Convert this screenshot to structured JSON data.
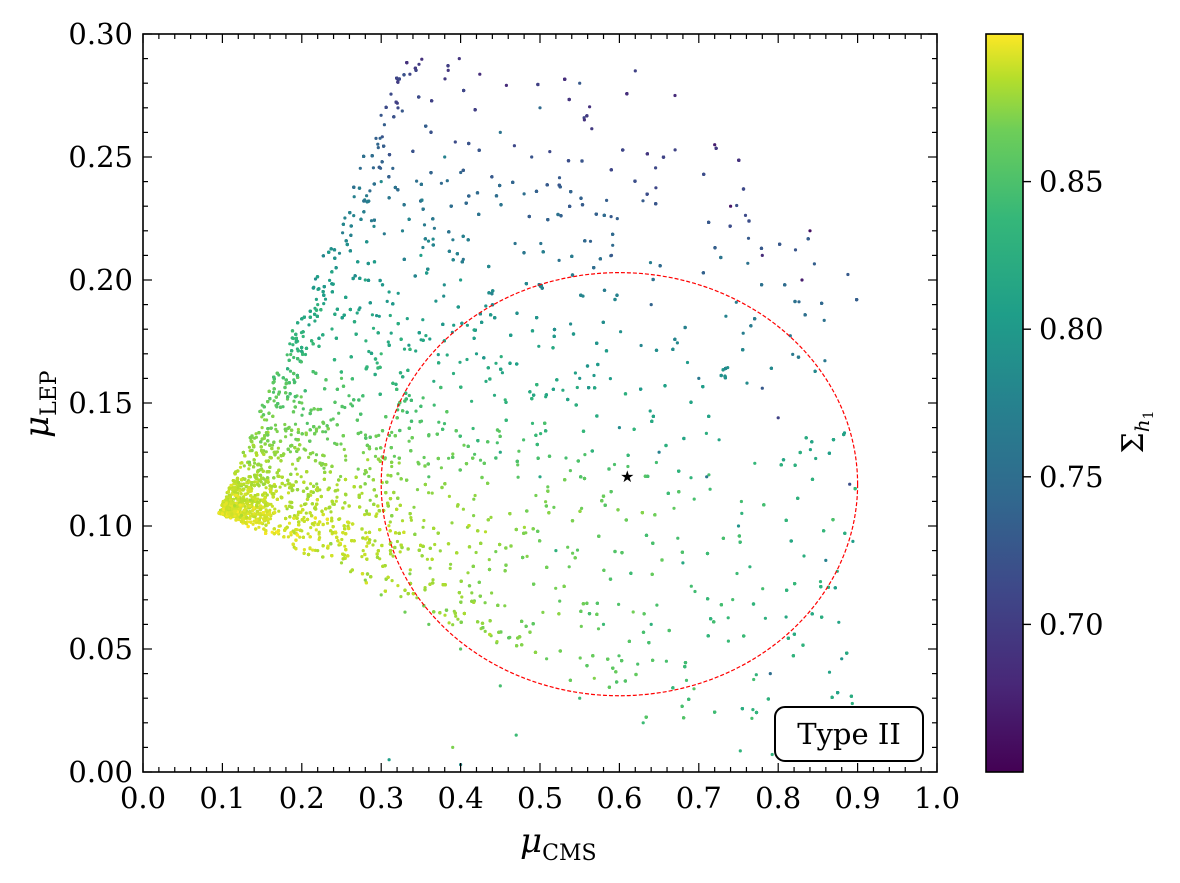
{
  "chart_data": {
    "type": "scatter",
    "title": "",
    "xlabel": {
      "symbol": "μ",
      "sub": "CMS"
    },
    "ylabel": {
      "symbol": "μ",
      "sub": "LEP"
    },
    "xlim": [
      0.0,
      1.0
    ],
    "ylim": [
      0.0,
      0.3
    ],
    "xticks": [
      "0.0",
      "0.1",
      "0.2",
      "0.3",
      "0.4",
      "0.5",
      "0.6",
      "0.7",
      "0.8",
      "0.9",
      "1.0"
    ],
    "yticks": [
      "0.00",
      "0.05",
      "0.10",
      "0.15",
      "0.20",
      "0.25",
      "0.30"
    ],
    "xtick_values": [
      0.0,
      0.1,
      0.2,
      0.3,
      0.4,
      0.5,
      0.6,
      0.7,
      0.8,
      0.9,
      1.0
    ],
    "ytick_values": [
      0.0,
      0.05,
      0.1,
      0.15,
      0.2,
      0.25,
      0.3
    ],
    "colorbar": {
      "label": {
        "symbol": "Σ",
        "sub": "h",
        "subsub": "1"
      },
      "range": [
        0.65,
        0.9
      ],
      "ticks": [
        "0.70",
        "0.75",
        "0.80",
        "0.85"
      ],
      "tick_values": [
        0.7,
        0.75,
        0.8,
        0.85
      ],
      "colormap": "viridis"
    },
    "annotation": "Type II",
    "best_fit_point": {
      "x": 0.61,
      "y": 0.12,
      "marker": "star",
      "color": "#ff00ff"
    },
    "ellipse": {
      "center_x": 0.6,
      "center_y": 0.117,
      "half_width_x": 0.3,
      "half_height_y": 0.086,
      "color": "#ff0000",
      "style": "dashed"
    },
    "point_cloud": {
      "description_source": "scan points",
      "regions": [
        {
          "x_range": [
            0.09,
            0.22
          ],
          "y_range": [
            0.09,
            0.13
          ],
          "color_value": [
            0.87,
            0.9
          ],
          "density": "very high"
        },
        {
          "x_range": [
            0.15,
            0.35
          ],
          "y_range": [
            0.12,
            0.18
          ],
          "color_value": [
            0.82,
            0.86
          ],
          "density": "high"
        },
        {
          "x_range": [
            0.22,
            0.42
          ],
          "y_range": [
            0.17,
            0.23
          ],
          "color_value": [
            0.77,
            0.81
          ],
          "density": "high"
        },
        {
          "x_range": [
            0.28,
            0.55
          ],
          "y_range": [
            0.22,
            0.29
          ],
          "color_value": [
            0.72,
            0.76
          ],
          "density": "medium"
        },
        {
          "x_range": [
            0.55,
            0.85
          ],
          "y_range": [
            0.03,
            0.22
          ],
          "color_value": [
            0.72,
            0.82
          ],
          "density": "sparse"
        }
      ],
      "sample_points": [
        [
          0.1,
          0.105,
          0.895
        ],
        [
          0.12,
          0.112,
          0.89
        ],
        [
          0.14,
          0.102,
          0.888
        ],
        [
          0.16,
          0.115,
          0.885
        ],
        [
          0.18,
          0.108,
          0.88
        ],
        [
          0.2,
          0.098,
          0.875
        ],
        [
          0.22,
          0.09,
          0.87
        ],
        [
          0.25,
          0.085,
          0.865
        ],
        [
          0.28,
          0.078,
          0.855
        ],
        [
          0.3,
          0.072,
          0.85
        ],
        [
          0.33,
          0.065,
          0.845
        ],
        [
          0.36,
          0.06,
          0.84
        ],
        [
          0.4,
          0.05,
          0.835
        ],
        [
          0.45,
          0.035,
          0.825
        ],
        [
          0.55,
          0.03,
          0.82
        ],
        [
          0.63,
          0.02,
          0.82
        ],
        [
          0.15,
          0.14,
          0.86
        ],
        [
          0.2,
          0.15,
          0.845
        ],
        [
          0.25,
          0.16,
          0.835
        ],
        [
          0.3,
          0.17,
          0.82
        ],
        [
          0.22,
          0.19,
          0.81
        ],
        [
          0.28,
          0.2,
          0.8
        ],
        [
          0.35,
          0.21,
          0.79
        ],
        [
          0.4,
          0.2,
          0.79
        ],
        [
          0.3,
          0.24,
          0.77
        ],
        [
          0.38,
          0.25,
          0.76
        ],
        [
          0.45,
          0.26,
          0.745
        ],
        [
          0.5,
          0.27,
          0.735
        ],
        [
          0.55,
          0.28,
          0.72
        ],
        [
          0.62,
          0.285,
          0.7
        ],
        [
          0.67,
          0.275,
          0.68
        ],
        [
          0.72,
          0.255,
          0.67
        ],
        [
          0.74,
          0.23,
          0.665
        ],
        [
          0.84,
          0.22,
          0.66
        ],
        [
          0.83,
          0.2,
          0.67
        ],
        [
          0.78,
          0.21,
          0.68
        ],
        [
          0.8,
          0.144,
          0.7
        ],
        [
          0.78,
          0.156,
          0.72
        ],
        [
          0.89,
          0.117,
          0.71
        ],
        [
          0.86,
          0.086,
          0.76
        ],
        [
          0.81,
          0.063,
          0.8
        ],
        [
          0.88,
          0.046,
          0.78
        ],
        [
          0.79,
          0.04,
          0.74
        ],
        [
          0.71,
          0.12,
          0.75
        ],
        [
          0.65,
          0.13,
          0.76
        ],
        [
          0.6,
          0.14,
          0.77
        ],
        [
          0.55,
          0.16,
          0.78
        ],
        [
          0.5,
          0.12,
          0.8
        ],
        [
          0.45,
          0.13,
          0.8
        ],
        [
          0.52,
          0.09,
          0.81
        ],
        [
          0.58,
          0.06,
          0.82
        ],
        [
          0.64,
          0.06,
          0.81
        ],
        [
          0.68,
          0.085,
          0.8
        ],
        [
          0.75,
          0.1,
          0.78
        ],
        [
          0.7,
          0.16,
          0.75
        ],
        [
          0.64,
          0.19,
          0.73
        ],
        [
          0.59,
          0.21,
          0.72
        ],
        [
          0.48,
          0.235,
          0.74
        ],
        [
          0.42,
          0.17,
          0.79
        ],
        [
          0.36,
          0.12,
          0.83
        ],
        [
          0.31,
          0.005,
          0.79
        ],
        [
          0.4,
          0.003,
          0.77
        ],
        [
          0.39,
          0.01,
          0.85
        ],
        [
          0.47,
          0.015,
          0.82
        ]
      ]
    }
  }
}
